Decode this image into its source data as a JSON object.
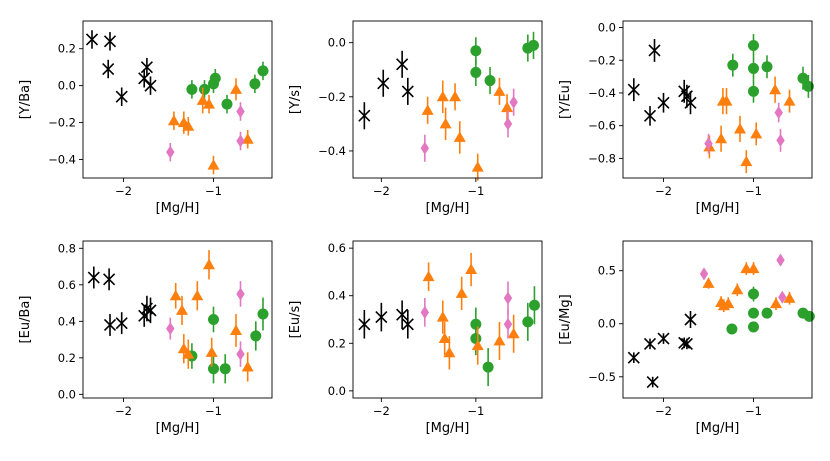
{
  "figure": {
    "marker_colors": {
      "black": "#000000",
      "green": "#2ca02c",
      "orange": "#ff7f0e",
      "pink": "#e377c2"
    },
    "xlabel": "[Mg/H]"
  },
  "chart_data": [
    {
      "type": "scatter",
      "title": "",
      "xlabel": "[Mg/H]",
      "ylabel": "[Y/Ba]",
      "xlim": [
        -2.45,
        -0.35
      ],
      "ylim": [
        -0.5,
        0.35
      ],
      "xticks": [
        -2,
        -1
      ],
      "xtick_labels": [
        "−2",
        "−1"
      ],
      "yticks": [
        -0.4,
        -0.2,
        0.0,
        0.2
      ],
      "ytick_labels": [
        "−0.4",
        "−0.2",
        "0.0",
        "0.2"
      ],
      "series": [
        {
          "name": "black-x",
          "marker": "x",
          "color": "#000000",
          "points": [
            [
              -2.35,
              0.25,
              0.05
            ],
            [
              -2.15,
              0.24,
              0.05
            ],
            [
              -2.17,
              0.09,
              0.05
            ],
            [
              -2.02,
              -0.06,
              0.05
            ],
            [
              -1.77,
              0.04,
              0.05
            ],
            [
              -1.74,
              0.1,
              0.05
            ],
            [
              -1.7,
              0.0,
              0.05
            ]
          ]
        },
        {
          "name": "green-circle",
          "marker": "o",
          "color": "#2ca02c",
          "points": [
            [
              -1.24,
              -0.02,
              0.05
            ],
            [
              -1.1,
              -0.02,
              0.05
            ],
            [
              -1.0,
              0.01,
              0.05
            ],
            [
              -0.98,
              0.04,
              0.05
            ],
            [
              -0.85,
              -0.1,
              0.05
            ],
            [
              -0.54,
              0.01,
              0.05
            ],
            [
              -0.45,
              0.08,
              0.05
            ]
          ]
        },
        {
          "name": "orange-triangle",
          "marker": "^",
          "color": "#ff7f0e",
          "points": [
            [
              -1.44,
              -0.19,
              0.05
            ],
            [
              -1.33,
              -0.2,
              0.06
            ],
            [
              -1.28,
              -0.22,
              0.05
            ],
            [
              -1.12,
              -0.08,
              0.07
            ],
            [
              -1.05,
              -0.1,
              0.05
            ],
            [
              -1.0,
              -0.43,
              0.05
            ],
            [
              -0.75,
              -0.02,
              0.06
            ],
            [
              -0.62,
              -0.29,
              0.05
            ]
          ]
        },
        {
          "name": "pink-diamond",
          "marker": "d",
          "color": "#e377c2",
          "points": [
            [
              -1.48,
              -0.36,
              0.05
            ],
            [
              -0.7,
              -0.14,
              0.05
            ],
            [
              -0.7,
              -0.3,
              0.05
            ]
          ]
        }
      ]
    },
    {
      "type": "scatter",
      "title": "",
      "xlabel": "[Mg/H]",
      "ylabel": "[Y/s]",
      "xlim": [
        -2.3,
        -0.3
      ],
      "ylim": [
        -0.5,
        0.08
      ],
      "xticks": [
        -2,
        -1
      ],
      "xtick_labels": [
        "−2",
        "−1"
      ],
      "yticks": [
        -0.4,
        -0.2,
        0.0
      ],
      "ytick_labels": [
        "−0.4",
        "−0.2",
        "0.0"
      ],
      "series": [
        {
          "name": "black-x",
          "marker": "x",
          "color": "#000000",
          "points": [
            [
              -2.18,
              -0.27,
              0.05
            ],
            [
              -1.98,
              -0.15,
              0.05
            ],
            [
              -1.78,
              -0.08,
              0.05
            ],
            [
              -1.72,
              -0.18,
              0.05
            ]
          ]
        },
        {
          "name": "green-circle",
          "marker": "o",
          "color": "#2ca02c",
          "points": [
            [
              -1.0,
              -0.03,
              0.05
            ],
            [
              -1.0,
              -0.11,
              0.05
            ],
            [
              -0.85,
              -0.14,
              0.05
            ],
            [
              -0.45,
              -0.02,
              0.05
            ],
            [
              -0.39,
              -0.01,
              0.05
            ]
          ]
        },
        {
          "name": "orange-triangle",
          "marker": "^",
          "color": "#ff7f0e",
          "points": [
            [
              -1.51,
              -0.25,
              0.05
            ],
            [
              -1.35,
              -0.2,
              0.06
            ],
            [
              -1.32,
              -0.3,
              0.06
            ],
            [
              -1.22,
              -0.2,
              0.05
            ],
            [
              -1.17,
              -0.35,
              0.06
            ],
            [
              -0.98,
              -0.46,
              0.05
            ],
            [
              -0.75,
              -0.18,
              0.05
            ],
            [
              -0.67,
              -0.24,
              0.05
            ]
          ]
        },
        {
          "name": "pink-diamond",
          "marker": "d",
          "color": "#e377c2",
          "points": [
            [
              -1.54,
              -0.39,
              0.05
            ],
            [
              -0.66,
              -0.3,
              0.05
            ],
            [
              -0.6,
              -0.22,
              0.05
            ]
          ]
        }
      ]
    },
    {
      "type": "scatter",
      "title": "",
      "xlabel": "[Mg/H]",
      "ylabel": "[Y/Eu]",
      "xlim": [
        -2.45,
        -0.35
      ],
      "ylim": [
        -0.92,
        0.04
      ],
      "xticks": [
        -2,
        -1
      ],
      "xtick_labels": [
        "−2",
        "−1"
      ],
      "yticks": [
        -0.8,
        -0.6,
        -0.4,
        -0.2,
        0.0
      ],
      "ytick_labels": [
        "−0.8",
        "−0.6",
        "−0.4",
        "−0.2",
        "0.0"
      ],
      "series": [
        {
          "name": "black-x",
          "marker": "x",
          "color": "#000000",
          "points": [
            [
              -2.33,
              -0.38,
              0.07
            ],
            [
              -2.15,
              -0.54,
              0.06
            ],
            [
              -2.1,
              -0.14,
              0.07
            ],
            [
              -2.0,
              -0.46,
              0.06
            ],
            [
              -1.77,
              -0.39,
              0.07
            ],
            [
              -1.74,
              -0.42,
              0.07
            ],
            [
              -1.7,
              -0.46,
              0.07
            ]
          ]
        },
        {
          "name": "green-circle",
          "marker": "o",
          "color": "#2ca02c",
          "points": [
            [
              -1.23,
              -0.23,
              0.07
            ],
            [
              -1.0,
              -0.11,
              0.07
            ],
            [
              -1.0,
              -0.25,
              0.07
            ],
            [
              -1.0,
              -0.39,
              0.07
            ],
            [
              -0.85,
              -0.24,
              0.07
            ],
            [
              -0.45,
              -0.31,
              0.07
            ],
            [
              -0.39,
              -0.36,
              0.07
            ]
          ]
        },
        {
          "name": "orange-triangle",
          "marker": "^",
          "color": "#ff7f0e",
          "points": [
            [
              -1.49,
              -0.73,
              0.07
            ],
            [
              -1.36,
              -0.68,
              0.08
            ],
            [
              -1.34,
              -0.45,
              0.08
            ],
            [
              -1.3,
              -0.45,
              0.08
            ],
            [
              -1.15,
              -0.62,
              0.08
            ],
            [
              -1.08,
              -0.82,
              0.07
            ],
            [
              -0.97,
              -0.65,
              0.07
            ],
            [
              -0.76,
              -0.38,
              0.08
            ],
            [
              -0.6,
              -0.45,
              0.07
            ]
          ]
        },
        {
          "name": "pink-diamond",
          "marker": "d",
          "color": "#e377c2",
          "points": [
            [
              -1.5,
              -0.71,
              0.06
            ],
            [
              -0.72,
              -0.52,
              0.06
            ],
            [
              -0.7,
              -0.69,
              0.07
            ]
          ]
        }
      ]
    },
    {
      "type": "scatter",
      "title": "",
      "xlabel": "[Mg/H]",
      "ylabel": "[Eu/Ba]",
      "xlim": [
        -2.45,
        -0.35
      ],
      "ylim": [
        -0.02,
        0.84
      ],
      "xticks": [
        -2,
        -1
      ],
      "xtick_labels": [
        "−2",
        "−1"
      ],
      "yticks": [
        0.0,
        0.2,
        0.4,
        0.6,
        0.8
      ],
      "ytick_labels": [
        "0.0",
        "0.2",
        "0.4",
        "0.6",
        "0.8"
      ],
      "series": [
        {
          "name": "black-x",
          "marker": "x",
          "color": "#000000",
          "points": [
            [
              -2.33,
              0.64,
              0.06
            ],
            [
              -2.16,
              0.63,
              0.06
            ],
            [
              -2.15,
              0.38,
              0.06
            ],
            [
              -2.02,
              0.39,
              0.06
            ],
            [
              -1.77,
              0.43,
              0.06
            ],
            [
              -1.74,
              0.47,
              0.07
            ],
            [
              -1.7,
              0.46,
              0.07
            ]
          ]
        },
        {
          "name": "green-circle",
          "marker": "o",
          "color": "#2ca02c",
          "points": [
            [
              -1.24,
              0.21,
              0.07
            ],
            [
              -1.0,
              0.41,
              0.07
            ],
            [
              -1.0,
              0.14,
              0.08
            ],
            [
              -0.87,
              0.14,
              0.08
            ],
            [
              -0.53,
              0.32,
              0.08
            ],
            [
              -0.45,
              0.44,
              0.09
            ]
          ]
        },
        {
          "name": "orange-triangle",
          "marker": "^",
          "color": "#ff7f0e",
          "points": [
            [
              -1.42,
              0.54,
              0.07
            ],
            [
              -1.35,
              0.46,
              0.08
            ],
            [
              -1.33,
              0.25,
              0.08
            ],
            [
              -1.28,
              0.22,
              0.08
            ],
            [
              -1.18,
              0.54,
              0.08
            ],
            [
              -1.05,
              0.71,
              0.08
            ],
            [
              -1.02,
              0.23,
              0.08
            ],
            [
              -0.75,
              0.35,
              0.09
            ],
            [
              -0.62,
              0.15,
              0.08
            ]
          ]
        },
        {
          "name": "pink-diamond",
          "marker": "d",
          "color": "#e377c2",
          "points": [
            [
              -1.48,
              0.36,
              0.06
            ],
            [
              -0.7,
              0.55,
              0.07
            ],
            [
              -0.7,
              0.22,
              0.07
            ]
          ]
        }
      ]
    },
    {
      "type": "scatter",
      "title": "",
      "xlabel": "[Mg/H]",
      "ylabel": "[Eu/s]",
      "xlim": [
        -2.3,
        -0.3
      ],
      "ylim": [
        -0.03,
        0.63
      ],
      "xticks": [
        -2,
        -1
      ],
      "xtick_labels": [
        "−2",
        "−1"
      ],
      "yticks": [
        0.0,
        0.2,
        0.4,
        0.6
      ],
      "ytick_labels": [
        "0.0",
        "0.2",
        "0.4",
        "0.6"
      ],
      "series": [
        {
          "name": "black-x",
          "marker": "x",
          "color": "#000000",
          "points": [
            [
              -2.18,
              0.28,
              0.06
            ],
            [
              -2.0,
              0.31,
              0.06
            ],
            [
              -1.78,
              0.32,
              0.06
            ],
            [
              -1.72,
              0.28,
              0.06
            ]
          ]
        },
        {
          "name": "green-circle",
          "marker": "o",
          "color": "#2ca02c",
          "points": [
            [
              -1.0,
              0.28,
              0.07
            ],
            [
              -1.0,
              0.22,
              0.07
            ],
            [
              -0.87,
              0.1,
              0.08
            ],
            [
              -0.45,
              0.29,
              0.08
            ],
            [
              -0.38,
              0.36,
              0.08
            ]
          ]
        },
        {
          "name": "orange-triangle",
          "marker": "^",
          "color": "#ff7f0e",
          "points": [
            [
              -1.5,
              0.48,
              0.06
            ],
            [
              -1.35,
              0.31,
              0.07
            ],
            [
              -1.33,
              0.22,
              0.07
            ],
            [
              -1.28,
              0.16,
              0.07
            ],
            [
              -1.15,
              0.41,
              0.07
            ],
            [
              -1.05,
              0.51,
              0.07
            ],
            [
              -0.98,
              0.19,
              0.08
            ],
            [
              -0.75,
              0.21,
              0.08
            ],
            [
              -0.6,
              0.24,
              0.08
            ]
          ]
        },
        {
          "name": "pink-diamond",
          "marker": "d",
          "color": "#e377c2",
          "points": [
            [
              -1.54,
              0.33,
              0.06
            ],
            [
              -0.66,
              0.39,
              0.07
            ],
            [
              -0.66,
              0.28,
              0.06
            ]
          ]
        }
      ]
    },
    {
      "type": "scatter",
      "title": "",
      "xlabel": "[Mg/H]",
      "ylabel": "[Eu/Mg]",
      "xlim": [
        -2.45,
        -0.35
      ],
      "ylim": [
        -0.7,
        0.78
      ],
      "xticks": [
        -2,
        -1
      ],
      "xtick_labels": [
        "−2",
        "−1"
      ],
      "yticks": [
        -0.5,
        0.0,
        0.5
      ],
      "ytick_labels": [
        "−0.5",
        "0.0",
        "0.5"
      ],
      "series": [
        {
          "name": "black-x",
          "marker": "x",
          "color": "#000000",
          "points": [
            [
              -2.33,
              -0.32,
              0.05
            ],
            [
              -2.15,
              -0.19,
              0.05
            ],
            [
              -2.12,
              -0.55,
              0.05
            ],
            [
              -2.0,
              -0.14,
              0.05
            ],
            [
              -1.77,
              -0.18,
              0.05
            ],
            [
              -1.74,
              -0.19,
              0.05
            ],
            [
              -1.7,
              0.04,
              0.08
            ]
          ]
        },
        {
          "name": "green-circle",
          "marker": "o",
          "color": "#2ca02c",
          "points": [
            [
              -1.24,
              -0.05,
              0.05
            ],
            [
              -1.0,
              0.28,
              0.07
            ],
            [
              -1.0,
              0.1,
              0.05
            ],
            [
              -1.0,
              -0.03,
              0.05
            ],
            [
              -0.85,
              0.1,
              0.05
            ],
            [
              -0.45,
              0.1,
              0.05
            ],
            [
              -0.38,
              0.07,
              0.05
            ]
          ]
        },
        {
          "name": "orange-triangle",
          "marker": "^",
          "color": "#ff7f0e",
          "points": [
            [
              -1.5,
              0.38,
              0.05
            ],
            [
              -1.36,
              0.2,
              0.06
            ],
            [
              -1.33,
              0.17,
              0.06
            ],
            [
              -1.28,
              0.19,
              0.06
            ],
            [
              -1.18,
              0.32,
              0.06
            ],
            [
              -1.08,
              0.52,
              0.06
            ],
            [
              -1.0,
              0.52,
              0.06
            ],
            [
              -0.75,
              0.19,
              0.06
            ],
            [
              -0.6,
              0.24,
              0.06
            ]
          ]
        },
        {
          "name": "pink-diamond",
          "marker": "d",
          "color": "#e377c2",
          "points": [
            [
              -1.55,
              0.47,
              0.05
            ],
            [
              -0.7,
              0.6,
              0.05
            ],
            [
              -0.68,
              0.25,
              0.05
            ]
          ]
        }
      ]
    }
  ]
}
